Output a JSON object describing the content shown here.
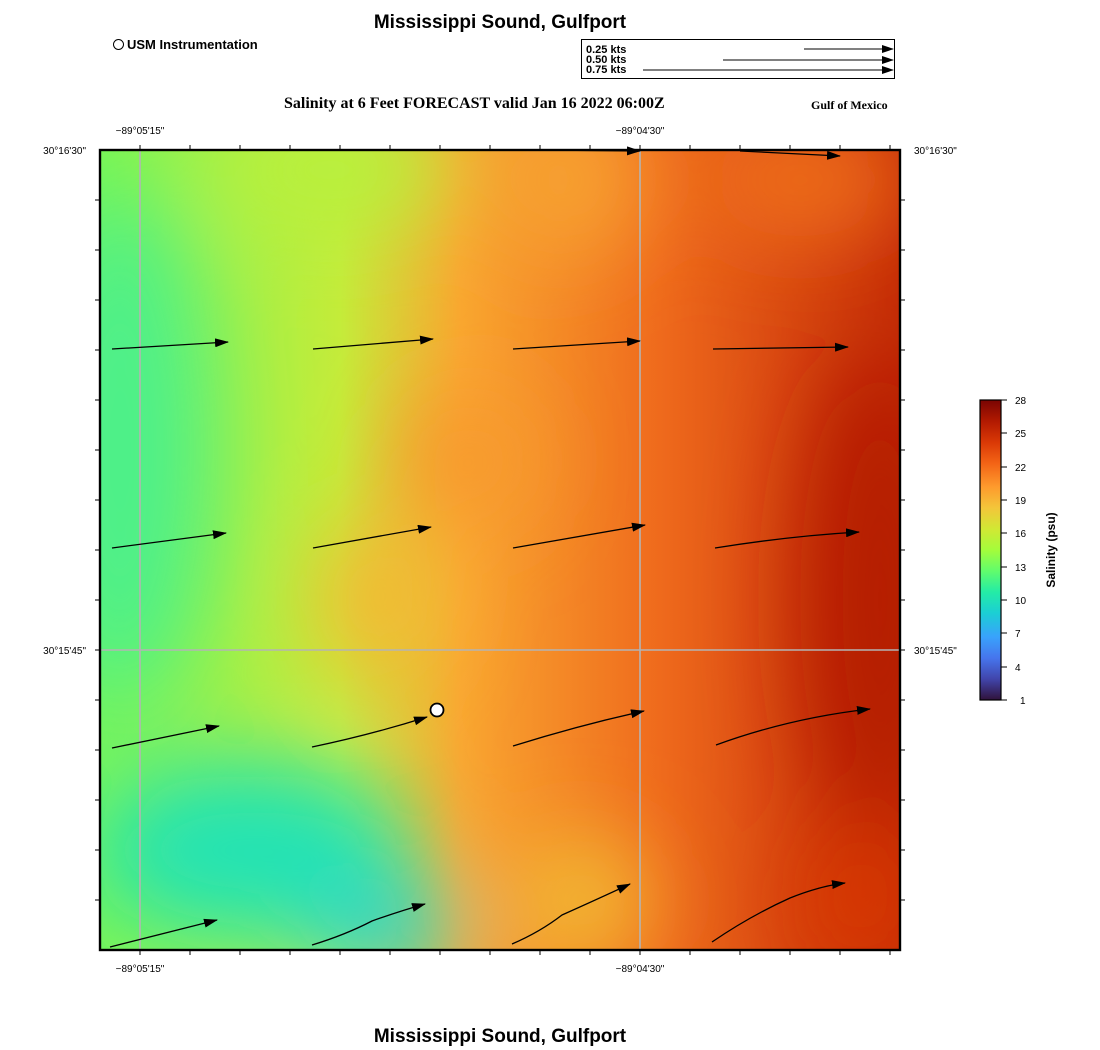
{
  "header": {
    "title": "Mississippi Sound, Gulfport",
    "subtitle": "Salinity at 6 Feet FORECAST valid Jan 16 2022 06:00Z",
    "region": "Gulf of Mexico",
    "station_legend": "USM Instrumentation"
  },
  "footer": {
    "title": "Mississippi Sound, Gulfport"
  },
  "vector_legend": {
    "entries": [
      {
        "label": "0.25 kts",
        "speed": 0.25
      },
      {
        "label": "0.50 kts",
        "speed": 0.5
      },
      {
        "label": "0.75 kts",
        "speed": 0.75
      }
    ]
  },
  "axes": {
    "lon_labels": [
      "−89°05'15\"",
      "−89°04'30\""
    ],
    "lat_labels": [
      "30°16'30\"",
      "30°15'45\""
    ]
  },
  "colorbar": {
    "label": "Salinity (psu)",
    "ticks": [
      "28",
      "25",
      "22",
      "19",
      "16",
      "13",
      "10",
      "7",
      "4",
      "1"
    ],
    "range": [
      1,
      28
    ],
    "colors": [
      "#30123b",
      "#4145ab",
      "#4675ed",
      "#39a2fc",
      "#1bcfd4",
      "#24eca6",
      "#61fc6c",
      "#a4fc3b",
      "#d1e834",
      "#f3c63a",
      "#fe9b2d",
      "#f36315",
      "#d93806",
      "#b11901",
      "#7a0402"
    ]
  },
  "station": {
    "name": "USM Instrumentation"
  }
}
